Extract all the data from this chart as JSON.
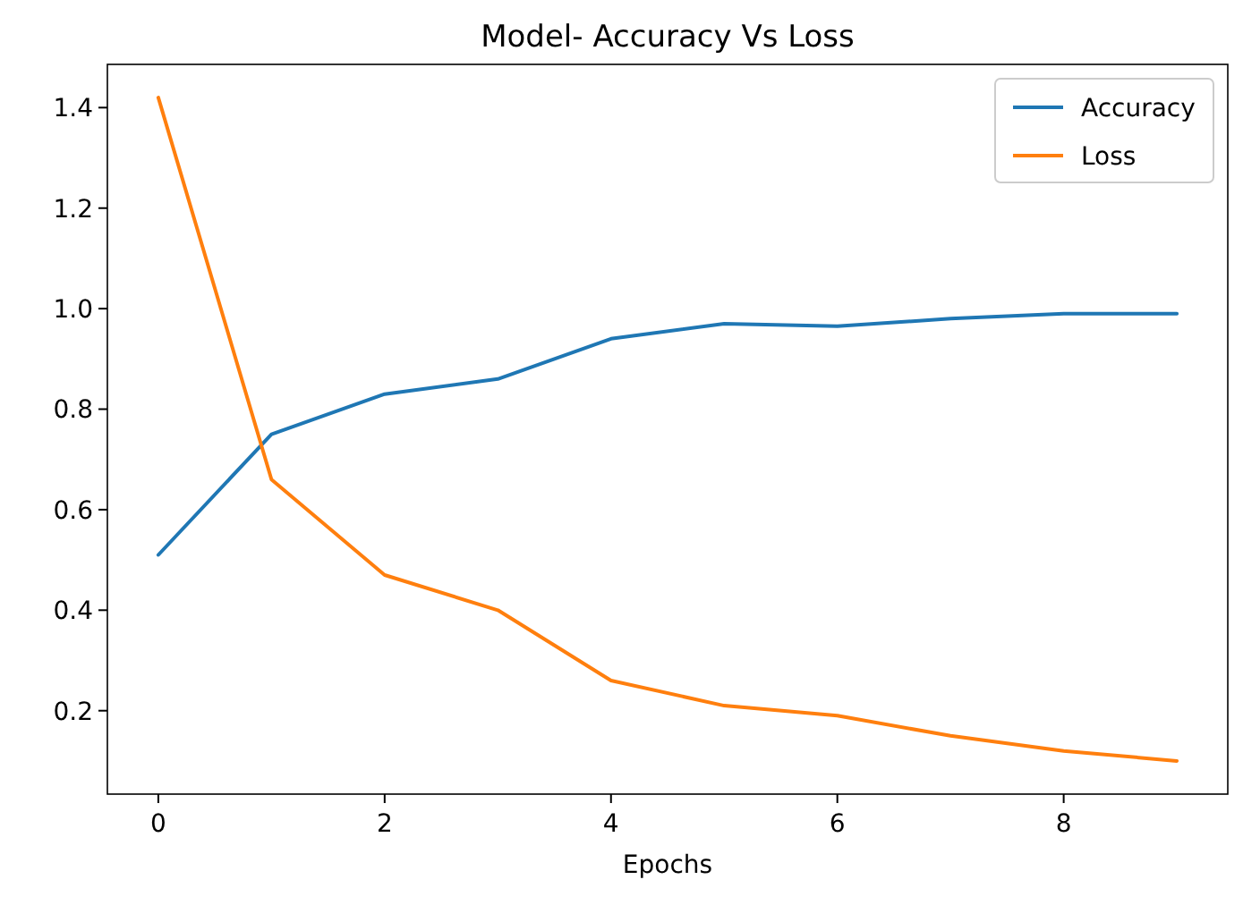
{
  "chart_data": {
    "type": "line",
    "title": "Model- Accuracy Vs Loss",
    "xlabel": "Epochs",
    "x": [
      0,
      1,
      2,
      3,
      4,
      5,
      6,
      7,
      8,
      9
    ],
    "series": [
      {
        "name": "Accuracy",
        "color": "#1f77b4",
        "values": [
          0.51,
          0.75,
          0.83,
          0.86,
          0.94,
          0.97,
          0.965,
          0.98,
          0.99,
          0.99
        ]
      },
      {
        "name": "Loss",
        "color": "#ff7f0e",
        "values": [
          1.42,
          0.66,
          0.47,
          0.4,
          0.26,
          0.21,
          0.19,
          0.15,
          0.12,
          0.1
        ]
      }
    ],
    "xlim": [
      -0.45,
      9.45
    ],
    "xticks": [
      0,
      2,
      4,
      6,
      8
    ],
    "ylim": [
      0.034,
      1.486
    ],
    "yticks": [
      0.2,
      0.4,
      0.6,
      0.8,
      {
        "value": 1,
        "label": "1.0"
      },
      1.2,
      1.4
    ],
    "grid": false,
    "legend": "top right",
    "marker": "none",
    "line_style": "solid"
  }
}
